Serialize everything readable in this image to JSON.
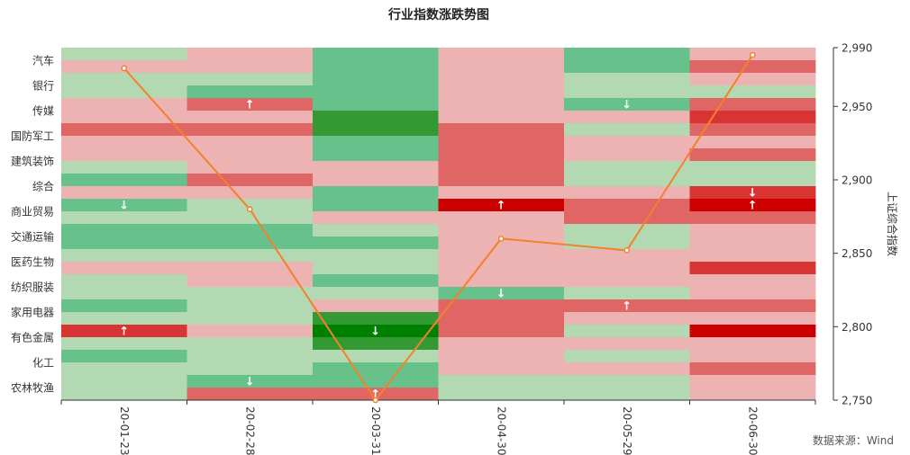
{
  "chart_data": {
    "type": "heatmap",
    "title": "行业指数涨跌势图",
    "source": "数据来源：Wind",
    "categories": [
      "20-01-23",
      "20-02-28",
      "20-03-31",
      "20-04-30",
      "20-05-29",
      "20-06-30"
    ],
    "industries_labeled": [
      "汽车",
      "银行",
      "传媒",
      "国防军工",
      "建筑装饰",
      "综合",
      "商业贸易",
      "交通运输",
      "医药生物",
      "纺织服装",
      "家用电器",
      "有色金属",
      "化工",
      "农林牧渔"
    ],
    "colors": {
      "up_strong": "#cc0000",
      "up": "#d93434",
      "up_mid": "#e06666",
      "up_light": "#edb2b2",
      "down_light": "#b3d9b3",
      "down_mid": "#66c28a",
      "down": "#339933",
      "down_strong": "#008000",
      "line": "#f5802b"
    },
    "heat_levels": [
      [
        "dl",
        "ul",
        "dm",
        "ul",
        "dm",
        "ul"
      ],
      [
        "ul",
        "ul",
        "dm",
        "ul",
        "dm",
        "um"
      ],
      [
        "dl",
        "dl",
        "dm",
        "ul",
        "dl",
        "ul"
      ],
      [
        "dl",
        "dm",
        "dm",
        "ul",
        "dl",
        "dl"
      ],
      [
        "ul",
        "um",
        "dm",
        "ul",
        "dm",
        "um"
      ],
      [
        "ul",
        "ul",
        "d",
        "ul",
        "ul",
        "u"
      ],
      [
        "um",
        "um",
        "d",
        "um",
        "dl",
        "um"
      ],
      [
        "ul",
        "ul",
        "dm",
        "um",
        "ul",
        "ul"
      ],
      [
        "ul",
        "ul",
        "dm",
        "um",
        "ul",
        "um"
      ],
      [
        "dl",
        "ul",
        "ul",
        "um",
        "dl",
        "dl"
      ],
      [
        "dm",
        "um",
        "ul",
        "um",
        "dl",
        "dl"
      ],
      [
        "ul",
        "ul",
        "dm",
        "ul",
        "ul",
        "u"
      ],
      [
        "dm",
        "dl",
        "dm",
        "us",
        "um",
        "us"
      ],
      [
        "dl",
        "dl",
        "ul",
        "ul",
        "um",
        "um"
      ],
      [
        "dm",
        "dm",
        "dl",
        "ul",
        "dl",
        "ul"
      ],
      [
        "dm",
        "dm",
        "dm",
        "ul",
        "dl",
        "ul"
      ],
      [
        "dl",
        "dl",
        "dl",
        "ul",
        "ul",
        "ul"
      ],
      [
        "ul",
        "ul",
        "dl",
        "ul",
        "ul",
        "u"
      ],
      [
        "dl",
        "ul",
        "dm",
        "ul",
        "ul",
        "ul"
      ],
      [
        "dl",
        "dl",
        "dl",
        "dm",
        "dl",
        "ul"
      ],
      [
        "dm",
        "dl",
        "ul",
        "um",
        "um",
        "um"
      ],
      [
        "dl",
        "dl",
        "d",
        "um",
        "ul",
        "ul"
      ],
      [
        "u",
        "ul",
        "ds",
        "um",
        "dl",
        "us"
      ],
      [
        "dl",
        "dl",
        "d",
        "ul",
        "ul",
        "ul"
      ],
      [
        "dm",
        "dl",
        "dl",
        "ul",
        "dl",
        "ul"
      ],
      [
        "dl",
        "dl",
        "dm",
        "ul",
        "ul",
        "um"
      ],
      [
        "dl",
        "dm",
        "dm",
        "dl",
        "dl",
        "ul"
      ],
      [
        "dl",
        "um",
        "um",
        "dl",
        "dl",
        "ul"
      ]
    ],
    "arrows": [
      {
        "col": 0,
        "row": 12,
        "dir": "down"
      },
      {
        "col": 0,
        "row": 22,
        "dir": "up"
      },
      {
        "col": 1,
        "row": 4,
        "dir": "up"
      },
      {
        "col": 1,
        "row": 26,
        "dir": "down"
      },
      {
        "col": 2,
        "row": 22,
        "dir": "down"
      },
      {
        "col": 2,
        "row": 27,
        "dir": "up"
      },
      {
        "col": 3,
        "row": 12,
        "dir": "up"
      },
      {
        "col": 3,
        "row": 19,
        "dir": "down"
      },
      {
        "col": 4,
        "row": 4,
        "dir": "down"
      },
      {
        "col": 4,
        "row": 20,
        "dir": "up"
      },
      {
        "col": 5,
        "row": 11,
        "dir": "down"
      },
      {
        "col": 5,
        "row": 12,
        "dir": "up"
      }
    ],
    "line_series": {
      "name": "上证综合指数",
      "values": [
        2976,
        2880,
        2750,
        2860,
        2852,
        2985
      ]
    },
    "y2label": "上证综合指数",
    "y2lim": [
      2750,
      2990
    ],
    "y2ticks": [
      "2,750",
      "2,800",
      "2,850",
      "2,900",
      "2,950",
      "2,990"
    ],
    "y2tick_values": [
      2750,
      2800,
      2850,
      2900,
      2950,
      2990
    ]
  }
}
